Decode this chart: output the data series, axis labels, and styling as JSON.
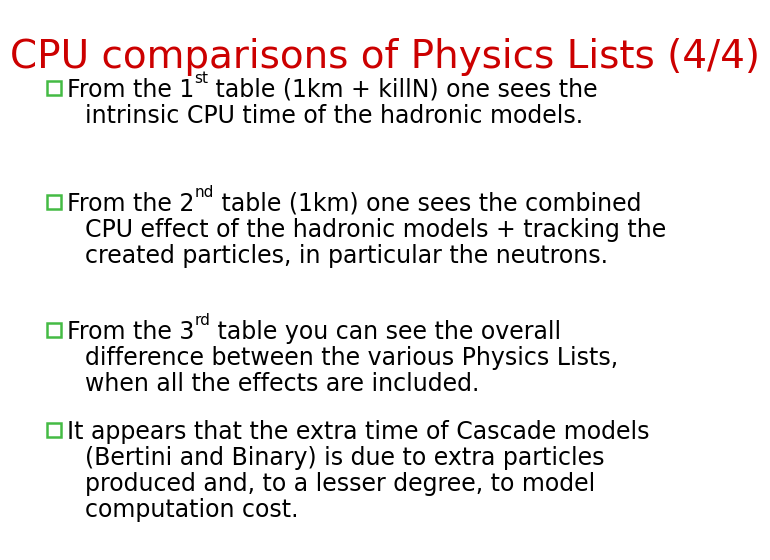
{
  "title": "CPU comparisons of Physics Lists (4/4)",
  "title_color": "#cc0000",
  "background_color": "#ffffff",
  "bullet_color": "#44bb44",
  "text_color": "#000000",
  "bullets": [
    {
      "parts": [
        {
          "text": "From the 1",
          "super": false
        },
        {
          "text": "st",
          "super": true
        },
        {
          "text": " table (1km + killN) one sees the",
          "super": false
        }
      ],
      "continuation": [
        "intrinsic CPU time of the hadronic models."
      ]
    },
    {
      "parts": [
        {
          "text": "From the 2",
          "super": false
        },
        {
          "text": "nd",
          "super": true
        },
        {
          "text": " table (1km) one sees the combined",
          "super": false
        }
      ],
      "continuation": [
        "CPU effect of the hadronic models + tracking the",
        "created particles, in particular the neutrons."
      ]
    },
    {
      "parts": [
        {
          "text": "From the 3",
          "super": false
        },
        {
          "text": "rd",
          "super": true
        },
        {
          "text": " table you can see the overall",
          "super": false
        }
      ],
      "continuation": [
        "difference between the various Physics Lists,",
        "when all the effects are included."
      ]
    },
    {
      "parts": [
        {
          "text": "It appears that the extra time of Cascade models",
          "super": false
        }
      ],
      "continuation": [
        "(Bertini and Binary) is due to extra particles",
        "produced and, to a lesser degree, to model",
        "computation cost."
      ]
    }
  ]
}
